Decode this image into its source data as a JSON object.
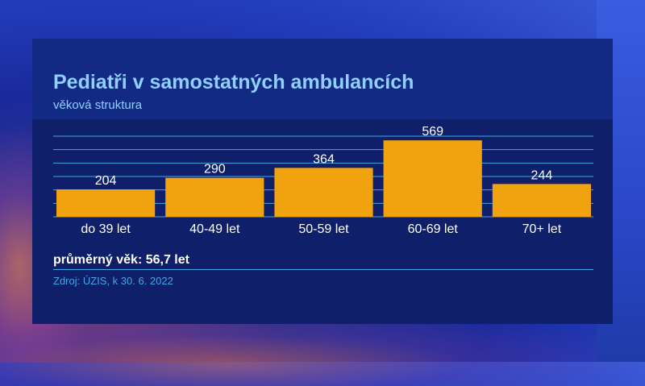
{
  "colors": {
    "bar": "#f0a30f",
    "gridline": "#3fa8e8",
    "title": "#8fd0ff",
    "value_label": "#ffffff",
    "tick_label": "#ffffff",
    "source": "#3fa8e8"
  },
  "chart_data": {
    "type": "bar",
    "title": "Pediatři v samostatných ambulancích",
    "subtitle": "věková struktura",
    "categories": [
      "do 39 let",
      "40-49 let",
      "50-59 let",
      "60-69 let",
      "70+ let"
    ],
    "values": [
      204,
      290,
      364,
      569,
      244
    ],
    "ylim": [
      0,
      600
    ],
    "grid": true,
    "legend": "none"
  },
  "note": "průměrný věk: 56,7 let",
  "source": "Zdroj: ÚZIS, k 30. 6. 2022"
}
